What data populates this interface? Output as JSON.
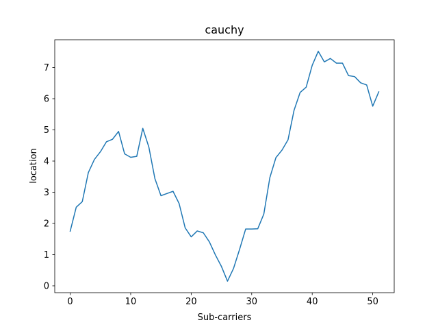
{
  "chart_data": {
    "type": "line",
    "title": "cauchy",
    "xlabel": "Sub-carriers",
    "ylabel": "location",
    "xlim": [
      -2.55,
      53.55
    ],
    "ylim": [
      -0.22,
      7.89
    ],
    "xticks": [
      0,
      10,
      20,
      30,
      40,
      50
    ],
    "yticks": [
      0,
      1,
      2,
      3,
      4,
      5,
      6,
      7
    ],
    "grid": false,
    "legend": "none",
    "series": [
      {
        "color": "#1f77b4",
        "x": [
          0,
          1,
          2,
          3,
          4,
          5,
          6,
          7,
          8,
          9,
          10,
          11,
          12,
          13,
          14,
          15,
          16,
          17,
          18,
          19,
          20,
          21,
          22,
          23,
          24,
          25,
          26,
          27,
          28,
          29,
          30,
          31,
          32,
          33,
          34,
          35,
          36,
          37,
          38,
          39,
          40,
          41,
          42,
          43,
          44,
          45,
          46,
          47,
          48,
          49,
          50,
          51
        ],
        "y": [
          1.75,
          2.52,
          2.7,
          3.63,
          4.05,
          4.3,
          4.62,
          4.7,
          4.95,
          4.23,
          4.12,
          4.15,
          5.05,
          4.45,
          3.44,
          2.89,
          2.96,
          3.03,
          2.64,
          1.86,
          1.57,
          1.76,
          1.7,
          1.41,
          0.99,
          0.62,
          0.15,
          0.56,
          1.17,
          1.82,
          1.82,
          1.83,
          2.3,
          3.47,
          4.11,
          4.35,
          4.68,
          5.63,
          6.2,
          6.37,
          7.07,
          7.52,
          7.18,
          7.29,
          7.14,
          7.14,
          6.74,
          6.71,
          6.51,
          6.44,
          5.76,
          6.22
        ]
      }
    ]
  }
}
